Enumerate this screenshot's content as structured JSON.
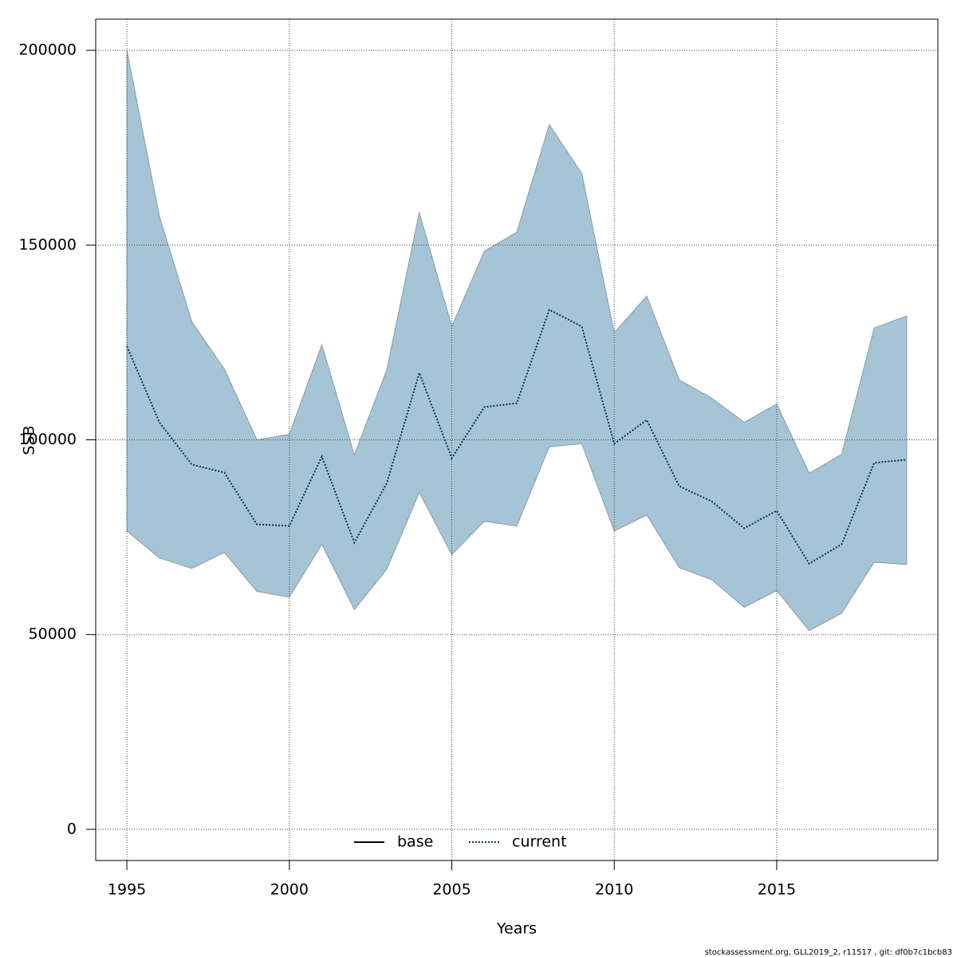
{
  "chart_data": {
    "type": "line",
    "x_label": "Years",
    "y_label": "SSB",
    "footnote": "stockassessment.org, GLL2019_2, r11517 , git: df0b7c1bcb83",
    "x": [
      1995,
      1996,
      1997,
      1998,
      1999,
      2000,
      2001,
      2002,
      2003,
      2004,
      2005,
      2006,
      2007,
      2008,
      2009,
      2010,
      2011,
      2012,
      2013,
      2014,
      2015,
      2016,
      2017,
      2018,
      2019
    ],
    "series": [
      {
        "name": "current",
        "color": "#003a5c",
        "dash": "dotted",
        "values": [
          124000,
          104500,
          93650,
          91600,
          78300,
          77900,
          95700,
          73600,
          88900,
          117200,
          95300,
          108400,
          109400,
          133400,
          129100,
          99000,
          105100,
          88100,
          84200,
          77300,
          81800,
          68200,
          73200,
          94100,
          94900
        ]
      }
    ],
    "band": {
      "color": "#a5c4d6",
      "edge_color": "#8a9ba6",
      "upper": [
        200000,
        157400,
        130300,
        118200,
        100000,
        101400,
        124400,
        96100,
        118000,
        158400,
        129100,
        148400,
        153300,
        180900,
        168400,
        127500,
        136900,
        115400,
        110700,
        104500,
        109200,
        91400,
        96300,
        128700,
        131800
      ],
      "lower": [
        76600,
        69700,
        67000,
        71100,
        61100,
        59600,
        73200,
        56400,
        66800,
        86500,
        70500,
        79100,
        77900,
        98200,
        99000,
        76600,
        80700,
        67200,
        64100,
        57000,
        61300,
        51000,
        55500,
        68600,
        68000
      ]
    },
    "legend": [
      {
        "name": "base",
        "color": "#000000",
        "dash": "solid"
      },
      {
        "name": "current",
        "color": "#003a5c",
        "dash": "dotted"
      }
    ],
    "legend_position": "bottom",
    "xlim": [
      1994.04,
      2019.96
    ],
    "ylim": [
      -8000,
      208000
    ],
    "xticks": [
      1995,
      2000,
      2005,
      2010,
      2015
    ],
    "yticks": [
      0,
      50000,
      100000,
      150000,
      200000
    ],
    "grid": true
  }
}
